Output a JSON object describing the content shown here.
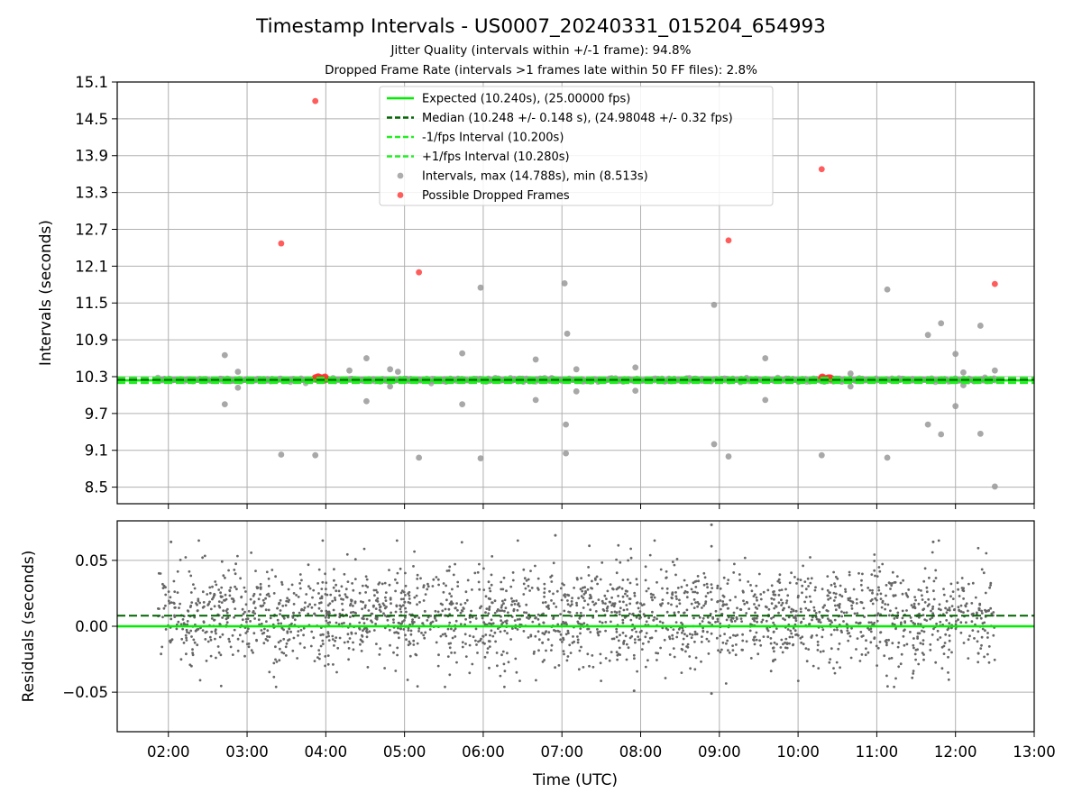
{
  "title": "Timestamp Intervals - US0007_20240331_015204_654993",
  "subtitle1": "Jitter Quality (intervals within +/-1 frame): 94.8%",
  "subtitle2": "Dropped Frame Rate (intervals >1 frames late within 50 FF files): 2.8%",
  "colors": {
    "expected": "#00ee00",
    "median": "#006400",
    "interval_line": "#22ee22",
    "intervals": "#999999",
    "dropped": "#ff3333",
    "residuals": "#666666",
    "grid": "#b0b0b0"
  },
  "chart_data": [
    {
      "type": "scatter",
      "ylabel": "Intervals (seconds)",
      "xlabel": "",
      "ylim": [
        8.23,
        15.1
      ],
      "y_ticks": [
        "8.5",
        "9.1",
        "9.7",
        "10.3",
        "10.9",
        "11.5",
        "12.1",
        "12.7",
        "13.3",
        "13.9",
        "14.5",
        "15.1"
      ],
      "x_ticks": [
        "02:00",
        "03:00",
        "04:00",
        "05:00",
        "06:00",
        "07:00",
        "08:00",
        "09:00",
        "10:00",
        "11:00",
        "12:00",
        "13:00"
      ],
      "grid": true,
      "legend_position": "top-center",
      "lines": {
        "expected": {
          "label": "Expected (10.240s), (25.00000 fps)",
          "y": 10.24
        },
        "median": {
          "label": "Median (10.248 +/- 0.148 s), (24.98048 +/- 0.32 fps)",
          "y": 10.248
        },
        "minus_interval": {
          "label": "-1/fps Interval (10.200s)",
          "y": 10.2
        },
        "plus_interval": {
          "label": "+1/fps Interval (10.280s)",
          "y": 10.28
        }
      },
      "intervals_series": {
        "label": "Intervals, max (14.788s), min (8.513s)",
        "band_start": "01:52",
        "band_end": "12:30",
        "band_center": 10.248,
        "outliers": [
          {
            "x": "02:43",
            "y": 10.65
          },
          {
            "x": "02:43",
            "y": 9.85
          },
          {
            "x": "02:53",
            "y": 10.38
          },
          {
            "x": "02:53",
            "y": 10.12
          },
          {
            "x": "03:26",
            "y": 9.03
          },
          {
            "x": "03:52",
            "y": 9.02
          },
          {
            "x": "04:18",
            "y": 10.4
          },
          {
            "x": "04:31",
            "y": 10.6
          },
          {
            "x": "04:31",
            "y": 9.9
          },
          {
            "x": "04:49",
            "y": 10.42
          },
          {
            "x": "04:49",
            "y": 10.14
          },
          {
            "x": "04:55",
            "y": 10.38
          },
          {
            "x": "05:11",
            "y": 8.98
          },
          {
            "x": "05:44",
            "y": 10.68
          },
          {
            "x": "05:44",
            "y": 9.85
          },
          {
            "x": "05:58",
            "y": 11.75
          },
          {
            "x": "05:58",
            "y": 8.97
          },
          {
            "x": "06:40",
            "y": 10.58
          },
          {
            "x": "06:40",
            "y": 9.92
          },
          {
            "x": "07:02",
            "y": 11.82
          },
          {
            "x": "07:03",
            "y": 9.52
          },
          {
            "x": "07:03",
            "y": 9.05
          },
          {
            "x": "07:04",
            "y": 11.0
          },
          {
            "x": "07:11",
            "y": 10.42
          },
          {
            "x": "07:11",
            "y": 10.06
          },
          {
            "x": "07:56",
            "y": 10.45
          },
          {
            "x": "07:56",
            "y": 10.07
          },
          {
            "x": "08:56",
            "y": 11.47
          },
          {
            "x": "08:56",
            "y": 9.2
          },
          {
            "x": "09:07",
            "y": 9.0
          },
          {
            "x": "09:35",
            "y": 10.6
          },
          {
            "x": "09:35",
            "y": 9.92
          },
          {
            "x": "10:18",
            "y": 9.02
          },
          {
            "x": "10:40",
            "y": 10.35
          },
          {
            "x": "10:40",
            "y": 10.14
          },
          {
            "x": "11:08",
            "y": 11.72
          },
          {
            "x": "11:08",
            "y": 8.98
          },
          {
            "x": "11:39",
            "y": 10.98
          },
          {
            "x": "11:39",
            "y": 9.52
          },
          {
            "x": "11:49",
            "y": 11.17
          },
          {
            "x": "11:49",
            "y": 9.36
          },
          {
            "x": "12:00",
            "y": 10.67
          },
          {
            "x": "12:00",
            "y": 9.82
          },
          {
            "x": "12:06",
            "y": 10.37
          },
          {
            "x": "12:06",
            "y": 10.16
          },
          {
            "x": "12:19",
            "y": 11.13
          },
          {
            "x": "12:19",
            "y": 9.37
          },
          {
            "x": "12:30",
            "y": 10.4
          },
          {
            "x": "12:30",
            "y": 8.51
          }
        ]
      },
      "dropped_series": {
        "label": "Possible Dropped Frames",
        "points": [
          {
            "x": "03:26",
            "y": 12.47
          },
          {
            "x": "03:52",
            "y": 14.79
          },
          {
            "x": "05:11",
            "y": 12.0
          },
          {
            "x": "09:07",
            "y": 12.52
          },
          {
            "x": "10:18",
            "y": 13.68
          },
          {
            "x": "12:30",
            "y": 11.81
          }
        ],
        "clusters": [
          {
            "x_start": "03:52",
            "x_end": "04:00",
            "y": 10.27
          },
          {
            "x_start": "10:18",
            "x_end": "10:25",
            "y": 10.27
          }
        ]
      }
    },
    {
      "type": "scatter",
      "ylabel": "Residuals (seconds)",
      "xlabel": "Time (UTC)",
      "ylim": [
        -0.08,
        0.08
      ],
      "y_ticks": [
        "−0.05",
        "0.00",
        "0.05"
      ],
      "y_tick_values": [
        -0.05,
        0.0,
        0.05
      ],
      "x_ticks": [
        "02:00",
        "03:00",
        "04:00",
        "05:00",
        "06:00",
        "07:00",
        "08:00",
        "09:00",
        "10:00",
        "11:00",
        "12:00",
        "13:00"
      ],
      "grid": true,
      "expected_residual": 0.0,
      "median_residual": 0.008,
      "residuals_range": {
        "x_start": "01:52",
        "x_end": "12:30",
        "min": -0.051,
        "max": 0.077
      },
      "notable_points": [
        {
          "x": "02:02",
          "y": 0.064
        },
        {
          "x": "06:55",
          "y": 0.069
        },
        {
          "x": "08:54",
          "y": 0.077
        },
        {
          "x": "08:54",
          "y": -0.051
        },
        {
          "x": "07:55",
          "y": -0.049
        },
        {
          "x": "11:43",
          "y": 0.064
        }
      ]
    }
  ]
}
